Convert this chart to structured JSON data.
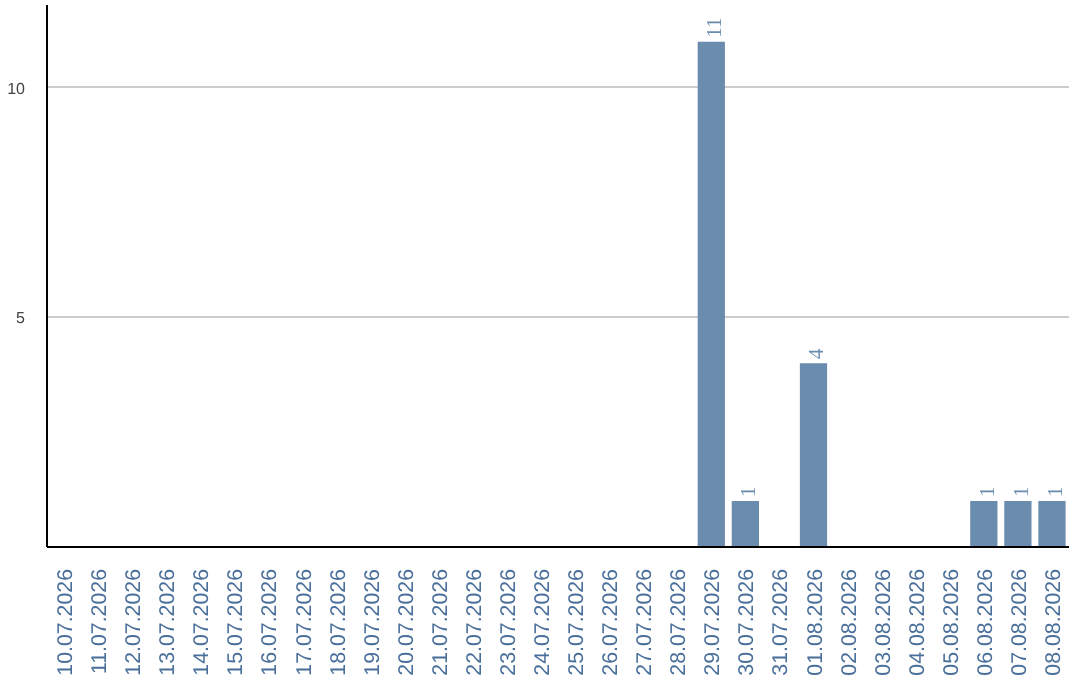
{
  "chart_data": {
    "type": "bar",
    "categories": [
      "10.07.2026",
      "11.07.2026",
      "12.07.2026",
      "13.07.2026",
      "14.07.2026",
      "15.07.2026",
      "16.07.2026",
      "17.07.2026",
      "18.07.2026",
      "19.07.2026",
      "20.07.2026",
      "21.07.2026",
      "22.07.2026",
      "23.07.2026",
      "24.07.2026",
      "25.07.2026",
      "26.07.2026",
      "27.07.2026",
      "28.07.2026",
      "29.07.2026",
      "30.07.2026",
      "31.07.2026",
      "01.08.2026",
      "02.08.2026",
      "03.08.2026",
      "04.08.2026",
      "05.08.2026",
      "06.08.2026",
      "07.08.2026",
      "08.08.2026"
    ],
    "values": [
      0,
      0,
      0,
      0,
      0,
      0,
      0,
      0,
      0,
      0,
      0,
      0,
      0,
      0,
      0,
      0,
      0,
      0,
      0,
      11,
      1,
      0,
      4,
      0,
      0,
      0,
      0,
      1,
      1,
      1
    ],
    "value_labels": [
      null,
      null,
      null,
      null,
      null,
      null,
      null,
      null,
      null,
      null,
      null,
      null,
      null,
      null,
      null,
      null,
      null,
      null,
      null,
      "11",
      "1",
      null,
      "4",
      null,
      null,
      null,
      null,
      "1",
      "1",
      "1"
    ],
    "color": "#6a8cae",
    "ylim": [
      0,
      11.8
    ],
    "yticks": [
      5,
      10
    ],
    "grid": "y"
  }
}
